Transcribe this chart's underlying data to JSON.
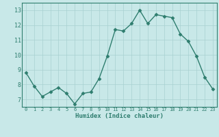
{
  "x": [
    0,
    1,
    2,
    3,
    4,
    5,
    6,
    7,
    8,
    9,
    10,
    11,
    12,
    13,
    14,
    15,
    16,
    17,
    18,
    19,
    20,
    21,
    22,
    23
  ],
  "y": [
    8.8,
    7.9,
    7.2,
    7.5,
    7.8,
    7.4,
    6.7,
    7.4,
    7.5,
    8.4,
    9.9,
    11.7,
    11.6,
    12.1,
    13.0,
    12.1,
    12.7,
    12.6,
    12.5,
    11.4,
    10.9,
    9.9,
    8.5,
    7.7
  ],
  "xlabel": "Humidex (Indice chaleur)",
  "ylim": [
    6.5,
    13.5
  ],
  "xlim": [
    -0.5,
    23.5
  ],
  "yticks": [
    7,
    8,
    9,
    10,
    11,
    12,
    13
  ],
  "xticks": [
    0,
    1,
    2,
    3,
    4,
    5,
    6,
    7,
    8,
    9,
    10,
    11,
    12,
    13,
    14,
    15,
    16,
    17,
    18,
    19,
    20,
    21,
    22,
    23
  ],
  "line_color": "#2e7d6e",
  "bg_color": "#c8e8e8",
  "grid_color": "#a8d0d0",
  "marker": "D",
  "marker_size": 2.5,
  "line_width": 1.0
}
